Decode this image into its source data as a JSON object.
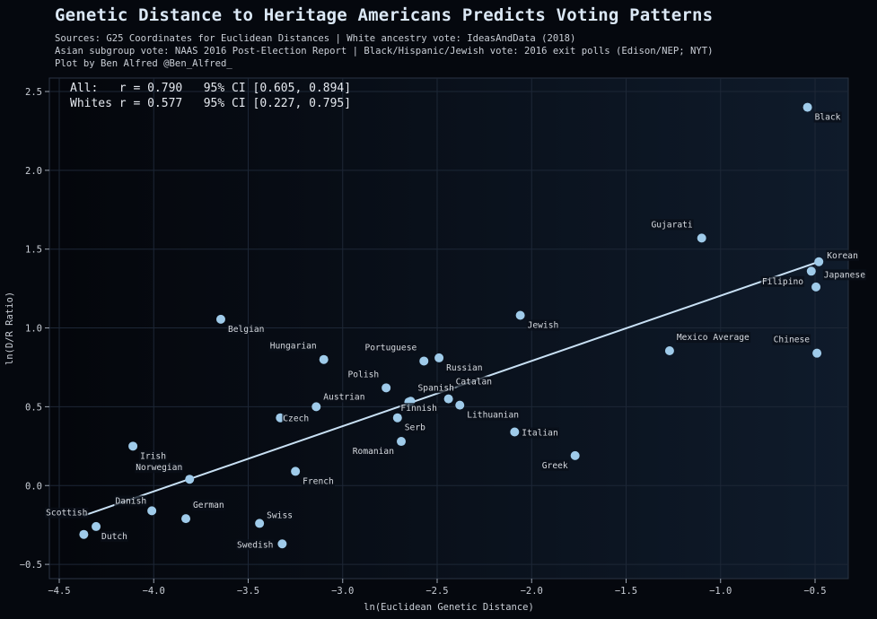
{
  "header": {
    "title": "Genetic Distance to Heritage Americans Predicts Voting Patterns",
    "subtitle_lines": [
      "Sources: G25 Coordinates for Euclidean Distances | White ancestry vote: IdeasAndData (2018)",
      "Asian subgroup vote: NAAS 2016 Post-Election Report | Black/Hispanic/Jewish vote: 2016 exit polls (Edison/NEP; NYT)",
      "Plot by Ben Alfred @Ben_Alfred_"
    ]
  },
  "chart_data": {
    "type": "scatter",
    "title": "Genetic Distance to Heritage Americans Predicts Voting Patterns",
    "xlabel": "ln(Euclidean Genetic Distance)",
    "ylabel": "ln(D/R Ratio)",
    "xlim": [
      -4.55,
      -0.35
    ],
    "ylim": [
      -0.6,
      2.6
    ],
    "xticks": [
      -4.5,
      -4.0,
      -3.5,
      -3.0,
      -2.5,
      -2.0,
      -1.5,
      -1.0,
      -0.5
    ],
    "xtick_labels": [
      "−4.5",
      "−4.0",
      "−3.5",
      "−3.0",
      "−2.5",
      "−2.0",
      "−1.5",
      "−1.0",
      "−0.5"
    ],
    "yticks": [
      -0.5,
      0.0,
      0.5,
      1.0,
      1.5,
      2.0,
      2.5
    ],
    "ytick_labels": [
      "−0.5",
      "0.0",
      "0.5",
      "1.0",
      "1.5",
      "2.0",
      "2.5"
    ],
    "grid": true,
    "annotations": [
      "All:   r = 0.790   95% CI [0.605, 0.894]",
      "Whites r = 0.577   95% CI [0.227, 0.795]"
    ],
    "colors": {
      "points": "#9fcbea",
      "fit_line": "#c8e0f4",
      "background": "#0a111c"
    },
    "fit_line": {
      "x": [
        -4.37,
        -0.48
      ],
      "y": [
        -0.19,
        1.42
      ]
    },
    "points": [
      {
        "label": "Black",
        "x": -0.54,
        "y": 2.4
      },
      {
        "label": "Gujarati",
        "x": -1.1,
        "y": 1.57
      },
      {
        "label": "Korean",
        "x": -0.48,
        "y": 1.42
      },
      {
        "label": "Japanese",
        "x": -0.52,
        "y": 1.36
      },
      {
        "label": "Filipino",
        "x": -0.495,
        "y": 1.26
      },
      {
        "label": "Chinese",
        "x": -0.49,
        "y": 0.84
      },
      {
        "label": "Mexico Average",
        "x": -1.27,
        "y": 0.855
      },
      {
        "label": "Jewish",
        "x": -2.06,
        "y": 1.08
      },
      {
        "label": "Belgian",
        "x": -3.645,
        "y": 1.055
      },
      {
        "label": "Hungarian",
        "x": -3.1,
        "y": 0.8
      },
      {
        "label": "Portuguese",
        "x": -2.57,
        "y": 0.79
      },
      {
        "label": "Russian",
        "x": -2.49,
        "y": 0.81
      },
      {
        "label": "Polish",
        "x": -2.77,
        "y": 0.62
      },
      {
        "label": "Spanish",
        "x": -2.64,
        "y": 0.535
      },
      {
        "label": "Finnish",
        "x": -2.65,
        "y": 0.53
      },
      {
        "label": "Catalan",
        "x": -2.44,
        "y": 0.55
      },
      {
        "label": "Lithuanian",
        "x": -2.38,
        "y": 0.51
      },
      {
        "label": "Italian",
        "x": -2.09,
        "y": 0.34
      },
      {
        "label": "Serb",
        "x": -2.71,
        "y": 0.43
      },
      {
        "label": "Romanian",
        "x": -2.69,
        "y": 0.28
      },
      {
        "label": "Austrian",
        "x": -3.14,
        "y": 0.5
      },
      {
        "label": "Czech",
        "x": -3.33,
        "y": 0.43
      },
      {
        "label": "Greek",
        "x": -1.77,
        "y": 0.19
      },
      {
        "label": "French",
        "x": -3.25,
        "y": 0.09
      },
      {
        "label": "Irish",
        "x": -4.11,
        "y": 0.25
      },
      {
        "label": "Norwegian",
        "x": -3.81,
        "y": 0.04
      },
      {
        "label": "German",
        "x": -3.83,
        "y": -0.21
      },
      {
        "label": "Danish",
        "x": -4.01,
        "y": -0.16
      },
      {
        "label": "Dutch",
        "x": -4.305,
        "y": -0.26
      },
      {
        "label": "Scottish",
        "x": -4.37,
        "y": -0.31
      },
      {
        "label": "Swiss",
        "x": -3.44,
        "y": -0.24
      },
      {
        "label": "Swedish",
        "x": -3.32,
        "y": -0.37
      }
    ]
  }
}
